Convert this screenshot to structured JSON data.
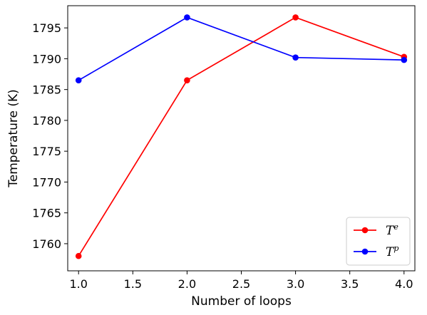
{
  "chart_data": {
    "type": "line",
    "title": "",
    "xlabel": "Number of loops",
    "ylabel": "Temperature (K)",
    "xlim": [
      0.9,
      4.1
    ],
    "ylim": [
      1755.6,
      1798.6
    ],
    "x_ticks": [
      1.0,
      1.5,
      2.0,
      2.5,
      3.0,
      3.5,
      4.0
    ],
    "x_tick_labels": [
      "1.0",
      "1.5",
      "2.0",
      "2.5",
      "3.0",
      "3.5",
      "4.0"
    ],
    "y_ticks": [
      1760,
      1765,
      1770,
      1775,
      1780,
      1785,
      1790,
      1795
    ],
    "y_tick_labels": [
      "1760",
      "1765",
      "1770",
      "1775",
      "1780",
      "1785",
      "1790",
      "1795"
    ],
    "grid": false,
    "legend_position": "bottom-right",
    "x": [
      1,
      2,
      3,
      4
    ],
    "series": [
      {
        "name": "T",
        "superscript": "e",
        "color": "#ff0000",
        "values": [
          1758.0,
          1786.5,
          1796.7,
          1790.3
        ]
      },
      {
        "name": "T",
        "superscript": "p",
        "color": "#0000ff",
        "values": [
          1786.5,
          1796.7,
          1790.2,
          1789.8
        ]
      }
    ]
  }
}
